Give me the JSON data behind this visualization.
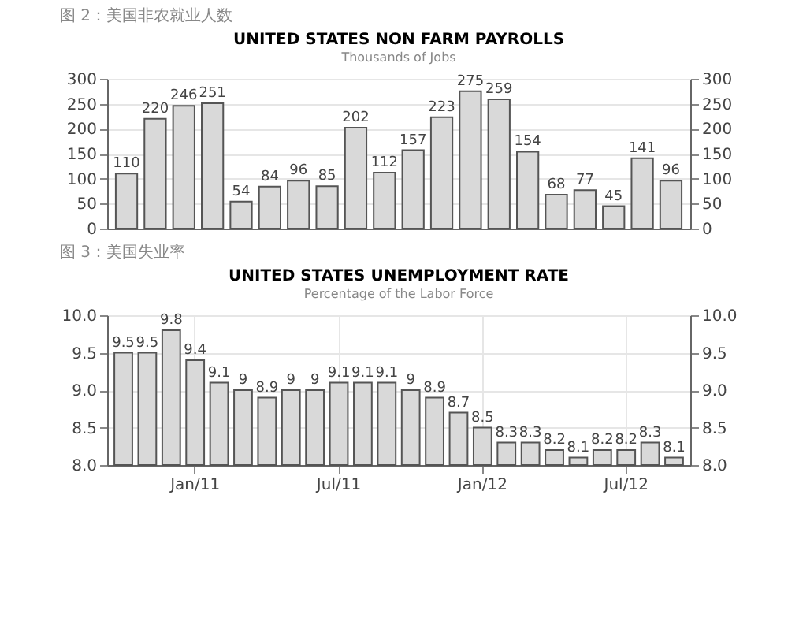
{
  "chart_data": [
    {
      "type": "bar",
      "annotations": [
        "图 2：美国非农就业人数"
      ],
      "title": "UNITED STATES NON FARM PAYROLLS",
      "subtitle": "Thousands of Jobs",
      "categories": [
        null,
        null,
        null,
        null,
        null,
        null,
        null,
        null,
        null,
        null,
        null,
        null,
        null,
        null,
        null,
        null,
        null,
        null,
        null,
        null
      ],
      "values": [
        110,
        220,
        246,
        251,
        54,
        84,
        96,
        85,
        202,
        112,
        157,
        223,
        275,
        259,
        154,
        68,
        77,
        45,
        141,
        96
      ],
      "color": "#d9d9d9",
      "ylim": [
        0,
        300
      ],
      "yticks": [
        0,
        50,
        100,
        150,
        200,
        250,
        300
      ],
      "y2lim": [
        0,
        300
      ],
      "y2ticks": [
        0,
        50,
        100,
        150,
        200,
        250,
        300
      ],
      "grid": "y",
      "data_labels": true
    },
    {
      "type": "bar",
      "annotations": [
        "图 3：美国失业率"
      ],
      "title": "UNITED STATES UNEMPLOYMENT RATE",
      "subtitle": "Percentage of the Labor Force",
      "categories": [
        null,
        null,
        null,
        "Jan/11",
        null,
        null,
        null,
        null,
        null,
        "Jul/11",
        null,
        null,
        null,
        null,
        null,
        "Jan/12",
        null,
        null,
        null,
        null,
        null,
        "Jul/12",
        null,
        null
      ],
      "values": [
        9.5,
        9.5,
        9.8,
        9.4,
        9.1,
        9,
        8.9,
        9,
        9,
        9.1,
        9.1,
        9.1,
        9,
        8.9,
        8.7,
        8.5,
        8.3,
        8.3,
        8.2,
        8.1,
        8.2,
        8.2,
        8.3,
        8.1
      ],
      "color": "#d9d9d9",
      "ylim": [
        8,
        10
      ],
      "yticks": [
        {
          "value": 8,
          "label": "8.0"
        },
        8.5,
        {
          "value": 9,
          "label": "9.0"
        },
        9.5,
        {
          "value": 10,
          "label": "10.0"
        }
      ],
      "y2lim": [
        8,
        10
      ],
      "y2ticks": [
        {
          "value": 8,
          "label": "8.0"
        },
        8.5,
        {
          "value": 9,
          "label": "9.0"
        },
        9.5,
        {
          "value": 10,
          "label": "10.0"
        }
      ],
      "grid": true,
      "data_labels": true
    }
  ]
}
